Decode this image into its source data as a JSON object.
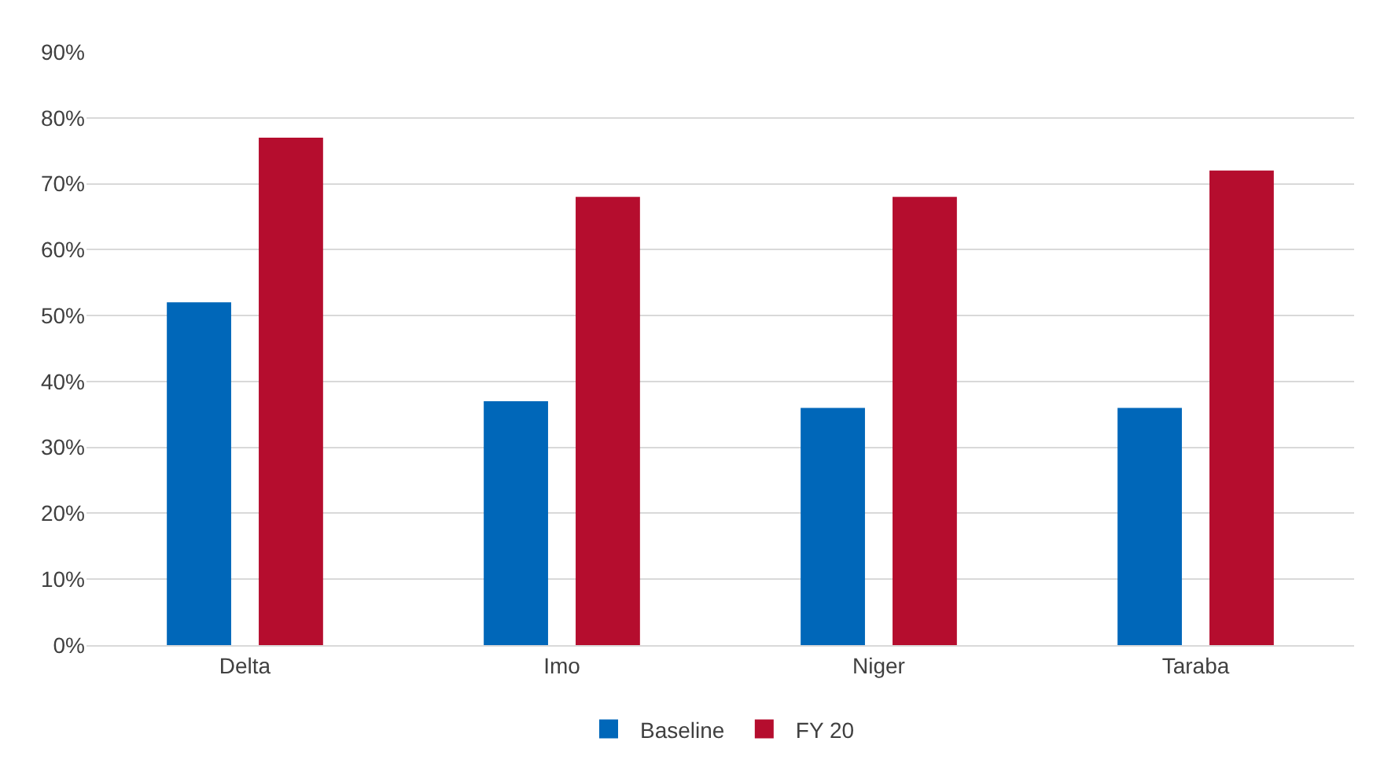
{
  "chart_data": {
    "type": "bar",
    "categories": [
      "Delta",
      "Imo",
      "Niger",
      "Taraba"
    ],
    "series": [
      {
        "name": "Baseline",
        "color": "#0067b9",
        "values": [
          52,
          37,
          36,
          36
        ]
      },
      {
        "name": "FY 20",
        "color": "#b50d2e",
        "values": [
          77,
          68,
          68,
          72
        ]
      }
    ],
    "ylim": [
      0,
      90
    ],
    "yticks": [
      {
        "value": 0,
        "label": "0%"
      },
      {
        "value": 10,
        "label": "10%"
      },
      {
        "value": 20,
        "label": "20%"
      },
      {
        "value": 30,
        "label": "30%"
      },
      {
        "value": 40,
        "label": "40%"
      },
      {
        "value": 50,
        "label": "50%"
      },
      {
        "value": 60,
        "label": "60%"
      },
      {
        "value": 70,
        "label": "70%"
      },
      {
        "value": 80,
        "label": "80%"
      },
      {
        "value": 90,
        "label": "90%"
      }
    ],
    "grid": "y",
    "legend": "bottom"
  }
}
